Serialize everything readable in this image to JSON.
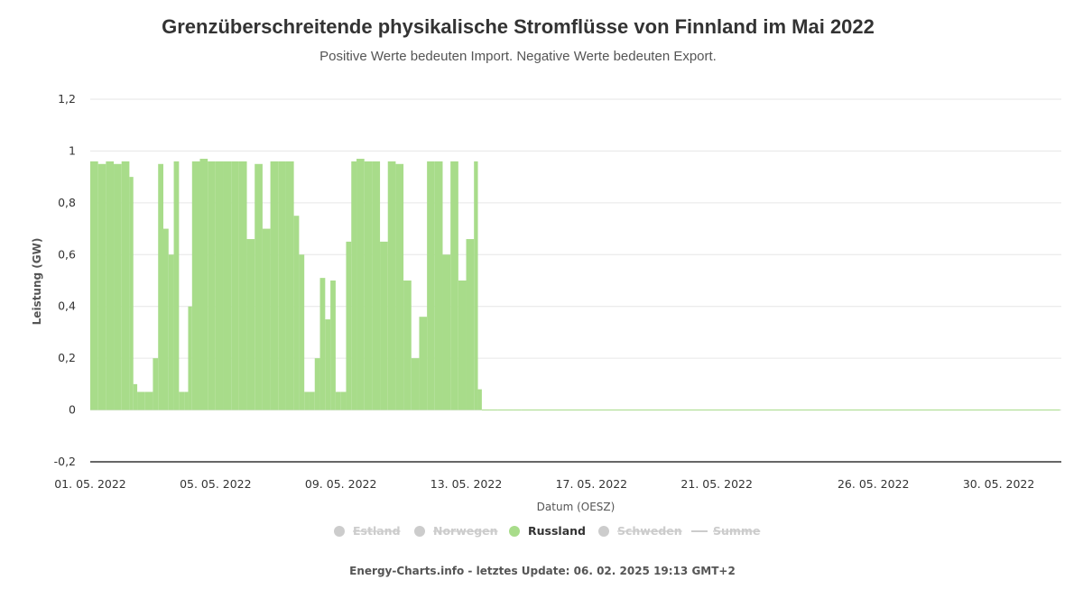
{
  "chart_data": {
    "type": "area",
    "title": "Grenzüberschreitende physikalische Stromflüsse von Finnland im Mai 2022",
    "subtitle": "Positive Werte bedeuten Import. Negative Werte bedeuten Export.",
    "xlabel": "Datum (OESZ)",
    "ylabel": "Leistung (GW)",
    "xlim": [
      "2022-05-01",
      "2022-06-01"
    ],
    "ylim": [
      -0.2,
      1.2
    ],
    "yticks": [
      -0.2,
      0,
      0.2,
      0.4,
      0.6,
      0.8,
      1,
      1.2
    ],
    "ytick_labels": [
      "-0,2",
      "0",
      "0,2",
      "0,4",
      "0,6",
      "0,8",
      "1",
      "1,2"
    ],
    "xticks": [
      "2022-05-01",
      "2022-05-05",
      "2022-05-09",
      "2022-05-13",
      "2022-05-17",
      "2022-05-21",
      "2022-05-26",
      "2022-05-30"
    ],
    "xtick_labels": [
      "01. 05. 2022",
      "05. 05. 2022",
      "09. 05. 2022",
      "13. 05. 2022",
      "17. 05. 2022",
      "21. 05. 2022",
      "26. 05. 2022",
      "30. 05. 2022"
    ],
    "grid": true,
    "legend_position": "bottom-center",
    "series": [
      {
        "name": "Estland",
        "visible": false,
        "color": "#cccccc",
        "values": []
      },
      {
        "name": "Norwegen",
        "visible": false,
        "color": "#cccccc",
        "values": []
      },
      {
        "name": "Russland",
        "visible": true,
        "color": "#a8dc8a",
        "values": [
          [
            "2022-05-01 00:00",
            0.96
          ],
          [
            "2022-05-01 06:00",
            0.95
          ],
          [
            "2022-05-01 12:00",
            0.96
          ],
          [
            "2022-05-01 18:00",
            0.95
          ],
          [
            "2022-05-02 00:00",
            0.96
          ],
          [
            "2022-05-02 06:00",
            0.9
          ],
          [
            "2022-05-02 09:00",
            0.1
          ],
          [
            "2022-05-02 12:00",
            0.07
          ],
          [
            "2022-05-02 18:00",
            0.07
          ],
          [
            "2022-05-03 00:00",
            0.2
          ],
          [
            "2022-05-03 04:00",
            0.95
          ],
          [
            "2022-05-03 08:00",
            0.7
          ],
          [
            "2022-05-03 12:00",
            0.6
          ],
          [
            "2022-05-03 16:00",
            0.96
          ],
          [
            "2022-05-03 20:00",
            0.07
          ],
          [
            "2022-05-04 00:00",
            0.07
          ],
          [
            "2022-05-04 03:00",
            0.4
          ],
          [
            "2022-05-04 06:00",
            0.96
          ],
          [
            "2022-05-04 12:00",
            0.97
          ],
          [
            "2022-05-04 18:00",
            0.96
          ],
          [
            "2022-05-05 00:00",
            0.96
          ],
          [
            "2022-05-05 06:00",
            0.96
          ],
          [
            "2022-05-05 12:00",
            0.96
          ],
          [
            "2022-05-05 18:00",
            0.96
          ],
          [
            "2022-05-06 00:00",
            0.66
          ],
          [
            "2022-05-06 06:00",
            0.95
          ],
          [
            "2022-05-06 12:00",
            0.7
          ],
          [
            "2022-05-06 18:00",
            0.96
          ],
          [
            "2022-05-07 00:00",
            0.96
          ],
          [
            "2022-05-07 06:00",
            0.96
          ],
          [
            "2022-05-07 12:00",
            0.75
          ],
          [
            "2022-05-07 16:00",
            0.6
          ],
          [
            "2022-05-07 20:00",
            0.07
          ],
          [
            "2022-05-08 00:00",
            0.07
          ],
          [
            "2022-05-08 04:00",
            0.2
          ],
          [
            "2022-05-08 08:00",
            0.51
          ],
          [
            "2022-05-08 12:00",
            0.35
          ],
          [
            "2022-05-08 16:00",
            0.5
          ],
          [
            "2022-05-08 20:00",
            0.07
          ],
          [
            "2022-05-09 00:00",
            0.07
          ],
          [
            "2022-05-09 04:00",
            0.65
          ],
          [
            "2022-05-09 08:00",
            0.96
          ],
          [
            "2022-05-09 12:00",
            0.97
          ],
          [
            "2022-05-09 18:00",
            0.96
          ],
          [
            "2022-05-10 00:00",
            0.96
          ],
          [
            "2022-05-10 06:00",
            0.65
          ],
          [
            "2022-05-10 12:00",
            0.96
          ],
          [
            "2022-05-10 18:00",
            0.95
          ],
          [
            "2022-05-11 00:00",
            0.5
          ],
          [
            "2022-05-11 06:00",
            0.2
          ],
          [
            "2022-05-11 12:00",
            0.36
          ],
          [
            "2022-05-11 18:00",
            0.96
          ],
          [
            "2022-05-12 00:00",
            0.96
          ],
          [
            "2022-05-12 06:00",
            0.6
          ],
          [
            "2022-05-12 12:00",
            0.96
          ],
          [
            "2022-05-12 18:00",
            0.5
          ],
          [
            "2022-05-13 00:00",
            0.66
          ],
          [
            "2022-05-13 06:00",
            0.96
          ],
          [
            "2022-05-13 09:00",
            0.08
          ],
          [
            "2022-05-13 12:00",
            0.0
          ],
          [
            "2022-05-13 18:00",
            -0.003
          ],
          [
            "2022-05-14 00:00",
            -0.003
          ],
          [
            "2022-05-14 12:00",
            -0.003
          ],
          [
            "2022-05-14 18:00",
            0.0
          ],
          [
            "2022-05-20 00:00",
            0.0
          ],
          [
            "2022-05-31 23:00",
            0.0
          ]
        ]
      },
      {
        "name": "Schweden",
        "visible": false,
        "color": "#cccccc",
        "values": []
      },
      {
        "name": "Summe",
        "visible": false,
        "color": "#cccccc",
        "values": []
      }
    ]
  },
  "footer": "Energy-Charts.info - letztes Update: 06. 02. 2025 19:13 GMT+2"
}
